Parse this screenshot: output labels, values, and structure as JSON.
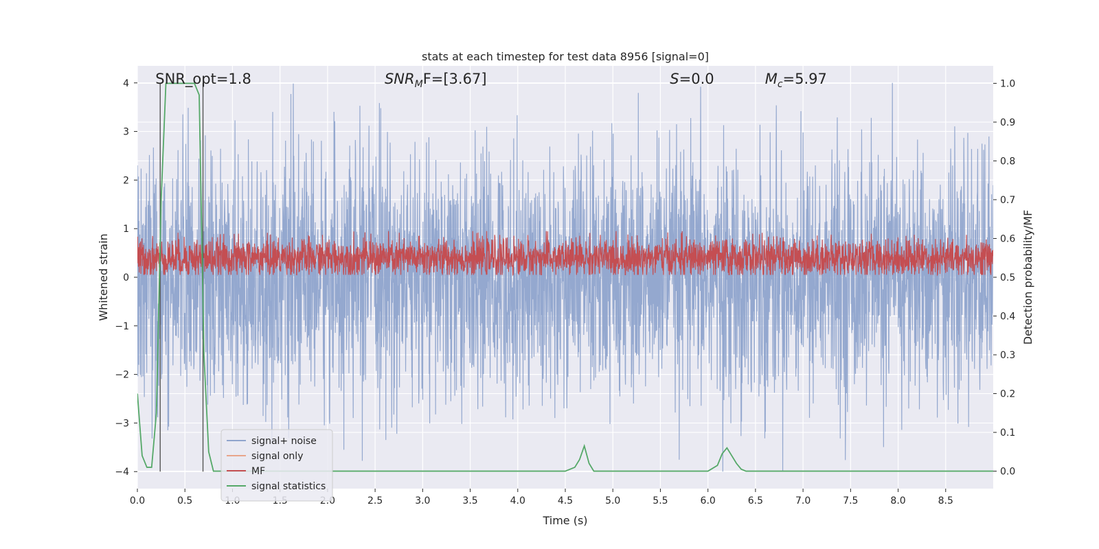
{
  "chart_data": {
    "type": "line",
    "title": "stats at each timestep for test data 8956 [signal=0]",
    "xlabel": "Time (s)",
    "ylabel": "Whitened strain",
    "y2label": "Detection probability/MF",
    "xlim": [
      0.0,
      9.0
    ],
    "ylim": [
      -4.35,
      4.35
    ],
    "y2lim": [
      -0.045,
      1.045
    ],
    "xticks": [
      "0.0",
      "0.5",
      "1.0",
      "1.5",
      "2.0",
      "2.5",
      "3.0",
      "3.5",
      "4.0",
      "4.5",
      "5.0",
      "5.5",
      "6.0",
      "6.5",
      "7.0",
      "7.5",
      "8.0",
      "8.5"
    ],
    "yticks": [
      "−4",
      "−3",
      "−2",
      "−1",
      "0",
      "1",
      "2",
      "3",
      "4"
    ],
    "y2ticks": [
      "0.0",
      "0.1",
      "0.2",
      "0.3",
      "0.4",
      "0.5",
      "0.6",
      "0.7",
      "0.8",
      "0.9",
      "1.0"
    ],
    "grid": true,
    "legend_position": "lower-left",
    "annotations": [
      {
        "text": "SNR_opt=1.8",
        "x": 0.19
      },
      {
        "text": "SNR",
        "sub": "M",
        "tail": "F=[3.67]",
        "x": 2.6
      },
      {
        "text": "S",
        "tail": "=0.0",
        "x": 5.6
      },
      {
        "text": "M",
        "sub": "c",
        "tail": "=5.97",
        "x": 6.6
      }
    ],
    "vertical_lines": [
      0.24,
      0.69
    ],
    "series": [
      {
        "name": "signal+ noise",
        "color": "#8fa4cc",
        "axis": "left",
        "description": "noisy whitened strain, roughly within -3.5..4"
      },
      {
        "name": "signal only",
        "color": "#e8a58a",
        "axis": "left"
      },
      {
        "name": "MF",
        "color": "#c44e52",
        "axis": "left",
        "description": "matched filter output, roughly 0.05..0.95"
      },
      {
        "name": "signal statistics",
        "color": "#55a868",
        "axis": "right",
        "x": [
          0.0,
          0.05,
          0.1,
          0.15,
          0.2,
          0.25,
          0.3,
          0.35,
          0.4,
          0.5,
          0.6,
          0.65,
          0.7,
          0.75,
          0.8,
          4.5,
          4.6,
          4.65,
          4.7,
          4.75,
          4.8,
          6.0,
          6.1,
          6.15,
          6.2,
          6.25,
          6.3,
          6.35,
          6.4,
          6.45,
          6.5,
          9.0
        ],
        "y": [
          0.2,
          0.04,
          0.01,
          0.01,
          0.15,
          0.7,
          1.0,
          1.0,
          1.0,
          1.0,
          1.0,
          0.97,
          0.3,
          0.05,
          0.0,
          0.0,
          0.01,
          0.03,
          0.065,
          0.02,
          0.0,
          0.0,
          0.015,
          0.045,
          0.06,
          0.04,
          0.02,
          0.005,
          0.0,
          0.0,
          0.0,
          0.0
        ]
      }
    ]
  }
}
